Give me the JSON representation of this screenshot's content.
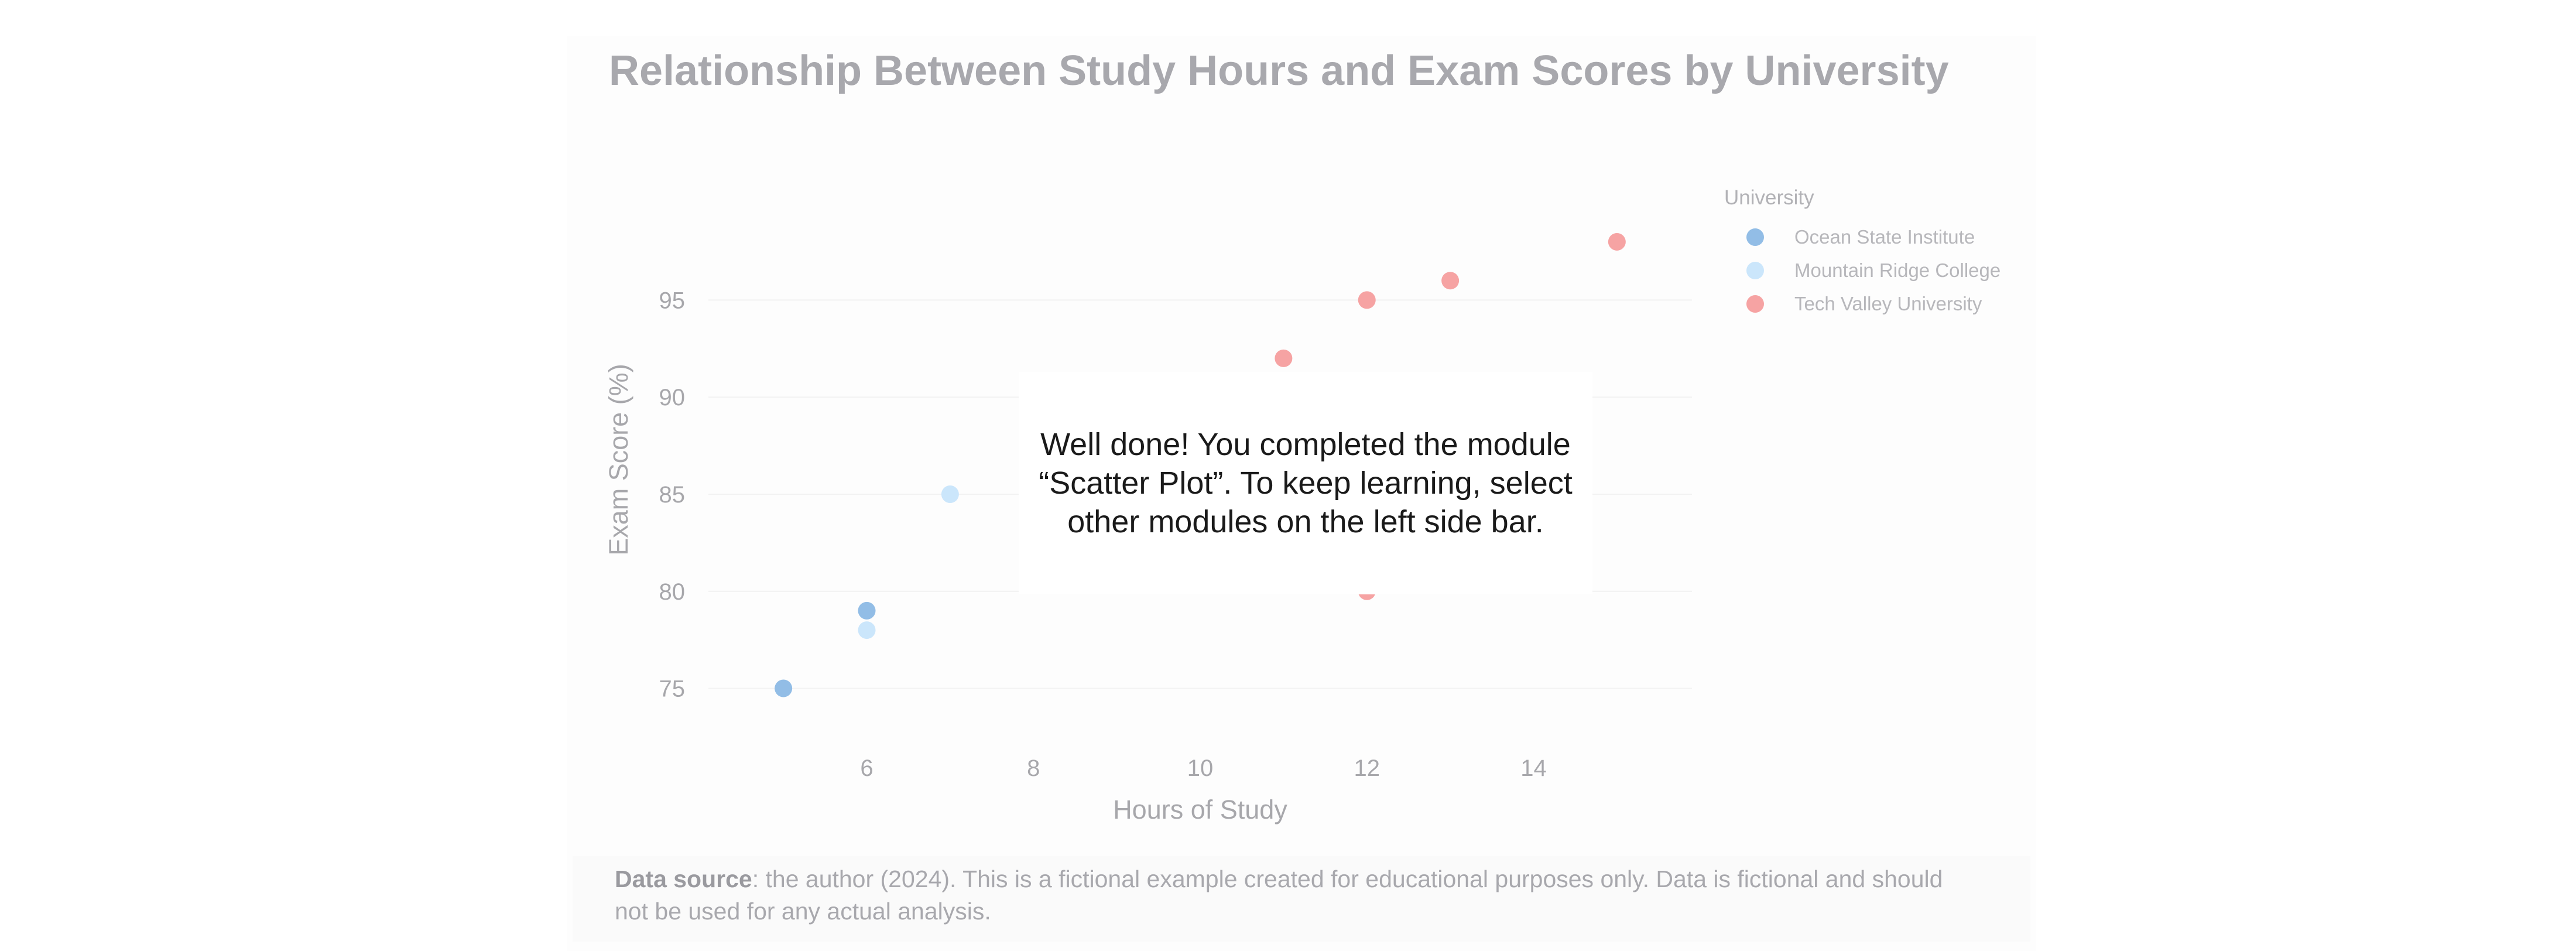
{
  "overlay": {
    "message": "Well done! You completed the module “Scatter Plot”. To keep learning, select other modules on the left side bar."
  },
  "source": {
    "label": "Data source",
    "text": ": the author (2024). This is a fictional example created for educational purposes only. Data is fictional and should not be used for any actual analysis."
  },
  "chart_data": {
    "type": "scatter",
    "title": "Relationship Between Study Hours and Exam Scores by University",
    "xlabel": "Hours of Study",
    "ylabel": "Exam Score (%)",
    "xlim": [
      4.1,
      15.9
    ],
    "ylim": [
      72,
      100.2
    ],
    "xticks": [
      6,
      8,
      10,
      12,
      14
    ],
    "yticks": [
      75,
      80,
      85,
      90,
      95
    ],
    "grid": true,
    "legend": {
      "title": "University",
      "position": "right"
    },
    "series": [
      {
        "name": "Ocean State Institute",
        "color": "#92bde6",
        "points": [
          [
            5,
            75
          ],
          [
            6,
            79
          ]
        ]
      },
      {
        "name": "Mountain Ridge College",
        "color": "#cbe6fb",
        "points": [
          [
            6,
            78
          ],
          [
            7,
            85
          ]
        ]
      },
      {
        "name": "Tech Valley University",
        "color": "#f6a3a3",
        "points": [
          [
            11,
            92
          ],
          [
            12,
            95
          ],
          [
            12,
            80
          ],
          [
            13,
            96
          ],
          [
            15,
            98
          ]
        ]
      }
    ]
  }
}
